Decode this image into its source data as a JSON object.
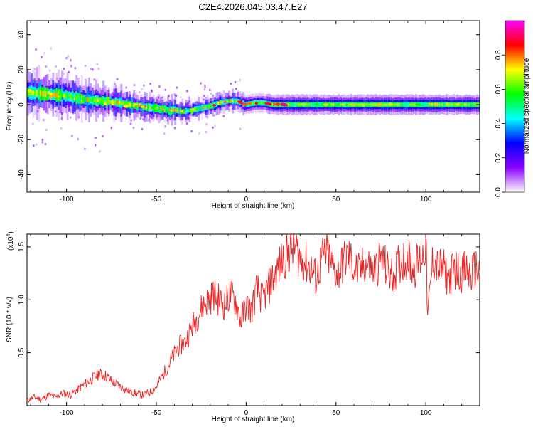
{
  "figure_title": "C2E4.2026.045.03.47.E27",
  "chart_data": [
    {
      "type": "heatmap",
      "xlabel": "Height of straight line (km)",
      "ylabel": "Frequency (Hz)",
      "xlim": [
        -122,
        130
      ],
      "ylim": [
        -50,
        48
      ],
      "x_ticks": [
        -100,
        -50,
        0,
        50,
        100
      ],
      "x_tick_labels": [
        "-100",
        "-50",
        "0",
        "50",
        "100"
      ],
      "y_ticks": [
        -40,
        -20,
        0,
        20,
        40
      ],
      "y_tick_labels": [
        "-40",
        "-20",
        "0",
        "20",
        "40"
      ],
      "colorbar": {
        "label": "Normalized spectral amplitude",
        "range": [
          0,
          1
        ],
        "ticks": [
          0.0,
          0.2,
          0.4,
          0.6,
          0.8
        ],
        "tick_labels": [
          "0.0",
          "0.2",
          "0.4",
          "0.6",
          "0.8"
        ],
        "colormap": [
          "#ffffff",
          "#8a00ff",
          "#0000ff",
          "#00ffff",
          "#00ff00",
          "#ffff00",
          "#ff0000",
          "#ff00ff"
        ]
      },
      "ridge": {
        "x": [
          -122,
          -110,
          -100,
          -90,
          -80,
          -70,
          -60,
          -50,
          -45,
          -40,
          -35,
          -30,
          -25,
          -20,
          -15,
          -10,
          -5,
          0,
          5,
          10,
          15,
          20,
          30,
          50,
          75,
          100,
          130
        ],
        "freq": [
          7,
          6,
          5,
          3,
          2,
          1,
          -1,
          -2,
          -3,
          -3,
          -4,
          -3,
          -2,
          -1,
          1,
          2,
          2,
          0,
          1,
          1,
          0,
          0,
          0,
          0,
          0,
          0,
          0
        ],
        "spread": [
          7,
          7,
          6,
          6,
          5,
          5,
          4,
          4,
          4,
          4,
          3,
          3,
          3,
          3,
          3,
          3,
          3,
          3,
          3,
          3,
          3,
          3,
          3,
          3,
          3,
          3,
          3
        ]
      }
    },
    {
      "type": "line",
      "xlabel": "Height of straight line (km)",
      "ylabel": "SNR (10 * v/v)",
      "multiplier_label": "(x10",
      "multiplier_exp": "4",
      "xlim": [
        -122,
        130
      ],
      "ylim": [
        0,
        1.62
      ],
      "x_ticks": [
        -100,
        -50,
        0,
        50,
        100
      ],
      "x_tick_labels": [
        "-100",
        "-50",
        "0",
        "50",
        "100"
      ],
      "y_ticks": [
        0.5,
        1.0,
        1.5
      ],
      "y_tick_labels": [
        "0.5",
        "1.0",
        "1.5"
      ],
      "line_color": "#ee2222",
      "series": [
        {
          "name": "SNR",
          "x": [
            -122,
            -118,
            -114,
            -110,
            -106,
            -102,
            -98,
            -94,
            -90,
            -86,
            -82,
            -78,
            -74,
            -70,
            -66,
            -62,
            -58,
            -54,
            -50,
            -46,
            -42,
            -38,
            -34,
            -30,
            -27,
            -24,
            -21,
            -18,
            -15,
            -12,
            -9,
            -6,
            -3,
            0,
            3,
            6,
            9,
            12,
            15,
            18,
            21,
            24,
            27,
            30,
            33,
            36,
            39,
            42,
            45,
            48,
            51,
            54,
            57,
            60,
            63,
            66,
            69,
            72,
            75,
            78,
            81,
            84,
            87,
            90,
            93,
            96,
            99,
            100,
            101,
            104,
            107,
            110,
            113,
            116,
            119,
            122,
            125,
            128,
            130
          ],
          "values": [
            0.05,
            0.08,
            0.06,
            0.1,
            0.08,
            0.12,
            0.1,
            0.15,
            0.2,
            0.25,
            0.3,
            0.28,
            0.22,
            0.18,
            0.14,
            0.12,
            0.1,
            0.12,
            0.18,
            0.3,
            0.42,
            0.55,
            0.6,
            0.75,
            0.85,
            0.95,
            1.0,
            1.05,
            1.0,
            0.95,
            1.05,
            1.0,
            0.8,
            0.95,
            0.9,
            1.1,
            1.0,
            1.1,
            1.2,
            1.3,
            1.4,
            1.45,
            1.5,
            1.4,
            1.35,
            1.3,
            1.2,
            1.38,
            1.45,
            1.3,
            1.25,
            1.35,
            1.42,
            1.3,
            1.25,
            1.35,
            1.3,
            1.28,
            1.4,
            1.3,
            1.22,
            1.3,
            1.38,
            1.4,
            1.3,
            1.35,
            1.45,
            1.58,
            0.82,
            1.4,
            1.3,
            1.28,
            1.2,
            1.3,
            1.25,
            1.28,
            1.22,
            1.3,
            1.25
          ]
        }
      ]
    }
  ]
}
